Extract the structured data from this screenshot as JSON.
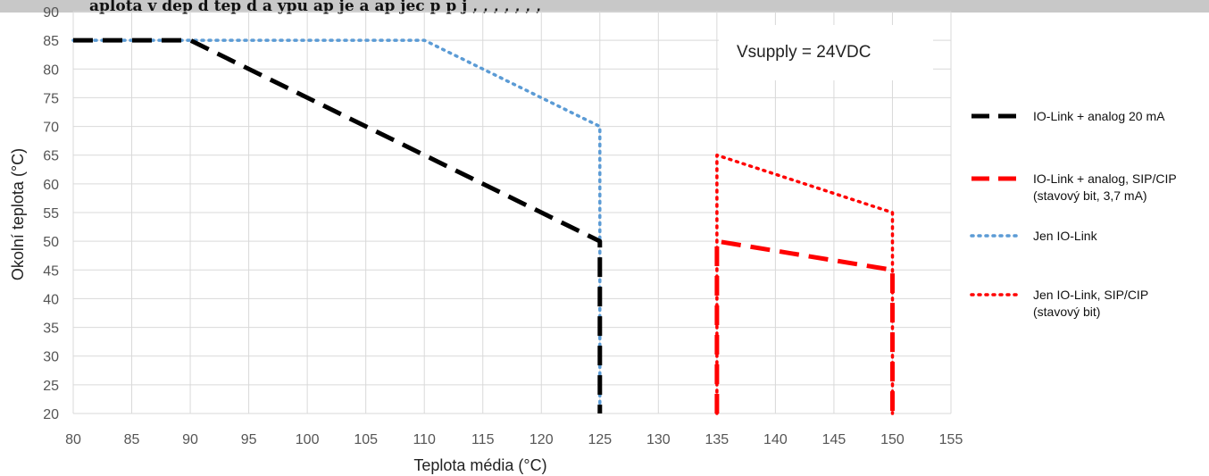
{
  "chart_data": {
    "type": "line",
    "title_fragment": "aplota v dep   d tep     d a  ypu ap je   a ap jec      p  p j     , , , , , , ,",
    "xlabel": "Teplota média (°C)",
    "ylabel": "Okolní teplota (°C)",
    "xlim": [
      80,
      155
    ],
    "ylim": [
      20,
      90
    ],
    "xticks": [
      "80",
      "85",
      "90",
      "95",
      "100",
      "105",
      "110",
      "115",
      "120",
      "125",
      "130",
      "135",
      "140",
      "145",
      "150",
      "155"
    ],
    "yticks": [
      "20",
      "25",
      "30",
      "35",
      "40",
      "45",
      "50",
      "55",
      "60",
      "65",
      "70",
      "75",
      "80",
      "85",
      "90"
    ],
    "grid": true,
    "legend_position": "right",
    "annotation": "Vsupply = 24VDC",
    "series": [
      {
        "name": "IO-Link + analog 20 mA",
        "color": "#000000",
        "style": "dashed",
        "x": [
          80,
          90,
          125,
          125
        ],
        "y": [
          85,
          85,
          50,
          20
        ]
      },
      {
        "name": "IO-Link + analog, SIP/CIP (stavový bit, 3,7 mA)",
        "legend_lines": [
          "IO-Link + analog, SIP/CIP",
          "(stavový bit, 3,7 mA)"
        ],
        "color": "#ff0000",
        "style": "dashed",
        "x": [
          135,
          135,
          150,
          150
        ],
        "y": [
          20,
          50,
          45,
          20
        ]
      },
      {
        "name": "Jen IO-Link",
        "color": "#5b9bd5",
        "style": "dotted",
        "x": [
          80,
          110,
          125,
          125
        ],
        "y": [
          85,
          85,
          70,
          20
        ]
      },
      {
        "name": "Jen IO-Link, SIP/CIP (stavový bit)",
        "legend_lines": [
          "Jen IO-Link, SIP/CIP",
          "(stavový bit)"
        ],
        "color": "#ff0000",
        "style": "dotted",
        "x": [
          135,
          135,
          150,
          150
        ],
        "y": [
          20,
          65,
          55,
          20
        ]
      }
    ]
  }
}
